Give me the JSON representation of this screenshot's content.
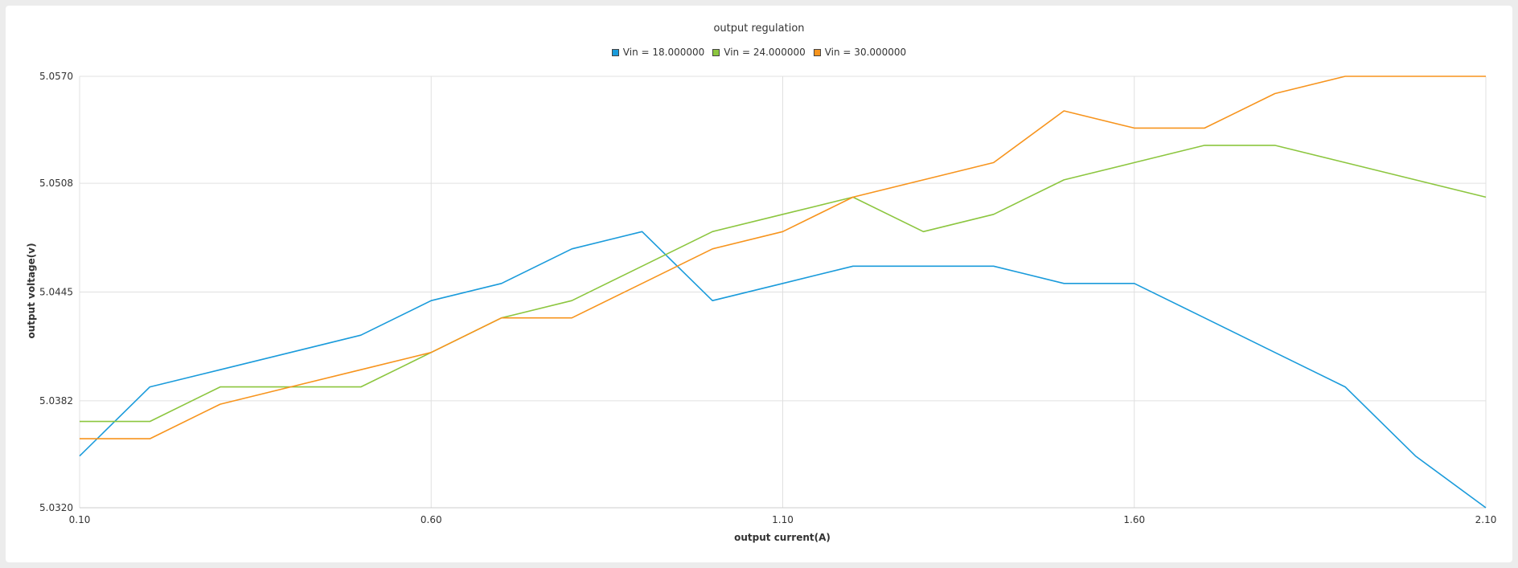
{
  "chart_data": {
    "type": "line",
    "title": "output regulation",
    "xlabel": "output current(A)",
    "ylabel": "output voltage(v)",
    "x": [
      0.1,
      0.2,
      0.3,
      0.4,
      0.5,
      0.6,
      0.7,
      0.8,
      0.9,
      1.0,
      1.1,
      1.2,
      1.3,
      1.4,
      1.5,
      1.6,
      1.7,
      1.8,
      1.9,
      2.0,
      2.1
    ],
    "xlim": [
      0.1,
      2.1
    ],
    "ylim": [
      5.032,
      5.057
    ],
    "x_ticks": [
      "0.10",
      "0.60",
      "1.10",
      "1.60",
      "2.10"
    ],
    "y_ticks": [
      "5.0320",
      "5.0382",
      "5.0445",
      "5.0508",
      "5.0570"
    ],
    "grid": true,
    "legend_position": "top-center",
    "series": [
      {
        "name": "Vin = 18.000000",
        "color": "#1a9bdb",
        "values": [
          5.035,
          5.039,
          5.04,
          5.041,
          5.042,
          5.044,
          5.045,
          5.047,
          5.048,
          5.044,
          5.045,
          5.046,
          5.046,
          5.046,
          5.045,
          5.045,
          5.043,
          5.041,
          5.039,
          5.035,
          5.032
        ]
      },
      {
        "name": "Vin = 24.000000",
        "color": "#8cc63f",
        "values": [
          5.037,
          5.037,
          5.039,
          5.039,
          5.039,
          5.041,
          5.043,
          5.044,
          5.046,
          5.048,
          5.049,
          5.05,
          5.048,
          5.049,
          5.051,
          5.052,
          5.053,
          5.053,
          5.052,
          5.051,
          5.05
        ]
      },
      {
        "name": "Vin = 30.000000",
        "color": "#f7941d",
        "values": [
          5.036,
          5.036,
          5.038,
          5.039,
          5.04,
          5.041,
          5.043,
          5.043,
          5.045,
          5.047,
          5.048,
          5.05,
          5.051,
          5.052,
          5.055,
          5.054,
          5.054,
          5.056,
          5.057,
          5.057,
          5.057
        ]
      }
    ]
  }
}
